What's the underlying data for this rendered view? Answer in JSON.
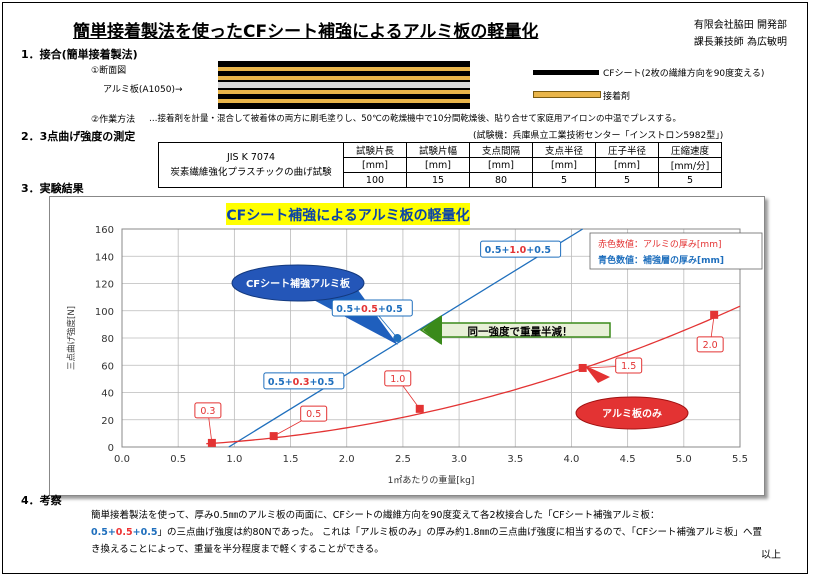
{
  "title": "簡単接着製法を使ったCFシート補強によるアルミ板の軽量化",
  "company": {
    "name": "有限会社脇田 開発部",
    "author": "課長兼技師 為広敏明"
  },
  "section1": {
    "heading": "1．接合(簡単接着製法)",
    "cross_section_label": "①断面図",
    "aluminum_label": "アルミ板(A1050)→",
    "legend_cf": "CFシート(2枚の繊維方向を90度変える)",
    "legend_adhesive": "接着剤",
    "method_label": "②作業方法",
    "method_text": "…接着剤を計量・混合して被着体の両方に刷毛塗りし、50℃の乾燥機中で10分間乾燥後、貼り合せて家庭用アイロンの中温でプレスする。"
  },
  "section2": {
    "heading": "2．3点曲げ強度の測定",
    "test_machine": "(試験機：兵庫県立工業技術センター「インストロン5982型」)",
    "standard_code": "JIS K 7074",
    "standard_name": "炭素繊維強化プラスチックの曲げ試験",
    "columns": [
      "試験片長",
      "試験片幅",
      "支点間隔",
      "支点半径",
      "圧子半径",
      "圧縮速度"
    ],
    "units": [
      "[mm]",
      "[mm]",
      "[mm]",
      "[mm]",
      "[mm]",
      "[mm/分]"
    ],
    "values": [
      "100",
      "15",
      "80",
      "5",
      "5",
      "5"
    ]
  },
  "section3": {
    "heading": "3．実験結果"
  },
  "chart_data": {
    "type": "scatter",
    "title": "CFシート補強によるアルミ板の軽量化",
    "xlabel": "1㎡あたりの重量[kg]",
    "ylabel": "三点曲げ強度[N]",
    "xlim": [
      0,
      5.5
    ],
    "ylim": [
      0,
      160
    ],
    "xticks": [
      "0.0",
      "0.5",
      "1.0",
      "1.5",
      "2.0",
      "2.5",
      "3.0",
      "3.5",
      "4.0",
      "4.5",
      "5.0",
      "5.5"
    ],
    "yticks": [
      "0",
      "20",
      "40",
      "60",
      "80",
      "100",
      "120",
      "140",
      "160"
    ],
    "grid": true,
    "legend_text": [
      "赤色数値：アルミの厚み[mm]",
      "青色数値：補強層の厚み[mm]"
    ],
    "series": [
      {
        "name": "CFシート補強アルミ板",
        "color": "#1f6fbd",
        "marker": "circle",
        "x": [
          1.93,
          2.45,
          3.77
        ],
        "y": [
          50,
          80,
          143
        ],
        "labels": [
          [
            "0.5+",
            "0.3",
            "+0.5"
          ],
          [
            "0.5+",
            "0.5",
            "+0.5"
          ],
          [
            "0.5+",
            "1.0",
            "+0.5"
          ]
        ]
      },
      {
        "name": "アルミ板のみ",
        "color": "#e33333",
        "marker": "square",
        "x": [
          0.8,
          1.35,
          2.65,
          4.1,
          5.27
        ],
        "y": [
          3,
          8,
          28,
          58,
          97
        ],
        "labels": [
          "0.3",
          "0.5",
          "1.0",
          "1.5",
          "2.0"
        ]
      }
    ],
    "annotation": "同一強度で重量半減！"
  },
  "section4": {
    "heading": "4．考察",
    "text_1": "簡単接着製法を使って、厚み0.5㎜のアルミ板の両面に、CFシートの繊維方向を90度変えて各2枚接合した「CFシート補強アルミ板：",
    "thick_a": "0.5+",
    "thick_b": "0.5",
    "thick_c": "+0.5",
    "text_2": "」の三点曲げ強度は約80Nであった。 これは「アルミ板のみ」の厚み約1.8㎜の三点曲げ強度に相当するので、「CFシート補強アルミ板」へ置き換えることによって、重量を半分程度まで軽くすることができる。",
    "end": "以上"
  }
}
